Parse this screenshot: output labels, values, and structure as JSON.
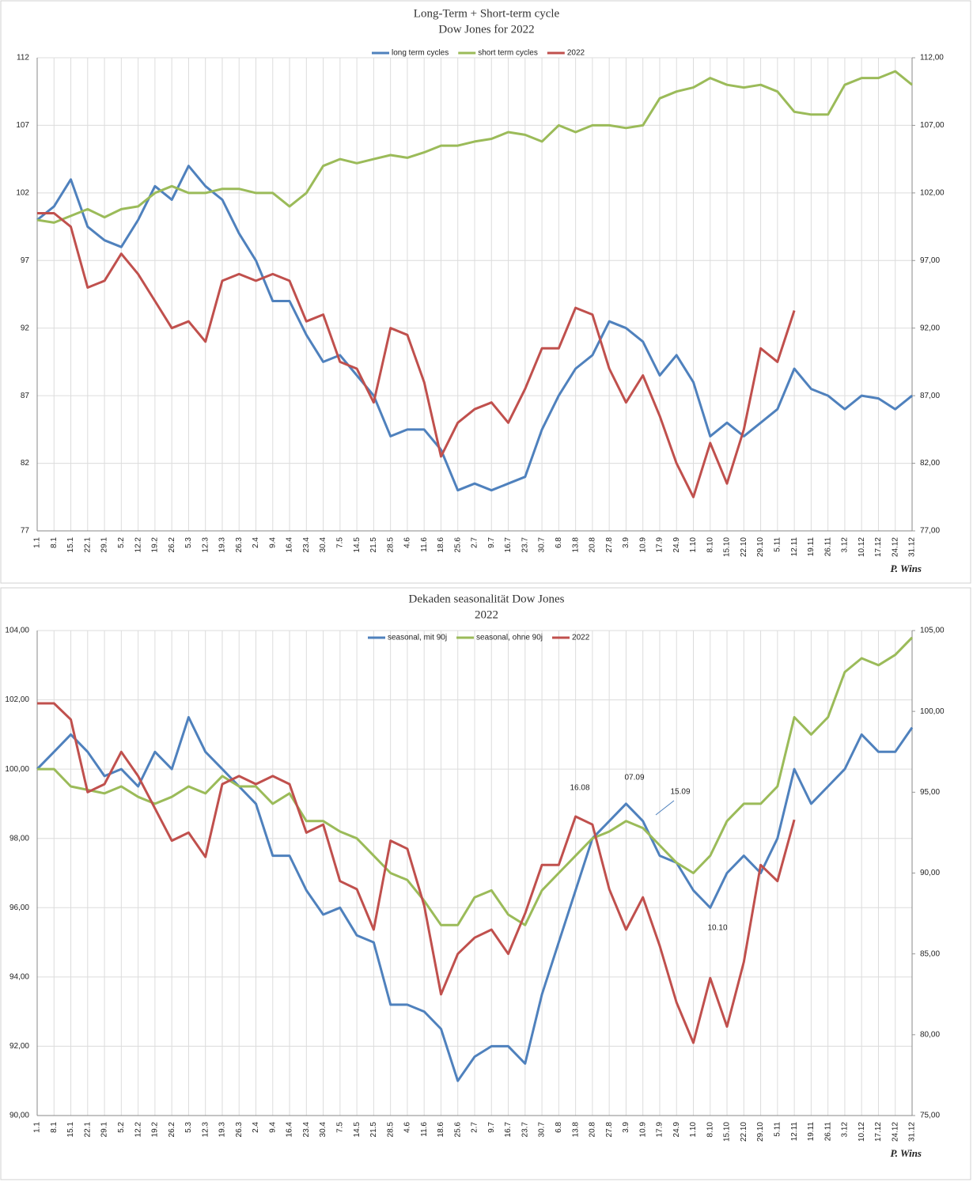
{
  "chart_data": [
    {
      "type": "line",
      "title": "Long-Term + Short-term cycle",
      "subtitle": "Dow Jones for 2022",
      "signature": "P. Wins",
      "categories": [
        "1.1",
        "8.1",
        "15.1",
        "22.1",
        "29.1",
        "5.2",
        "12.2",
        "19.2",
        "26.2",
        "5.3",
        "12.3",
        "19.3",
        "26.3",
        "2.4",
        "9.4",
        "16.4",
        "23.4",
        "30.4",
        "7.5",
        "14.5",
        "21.5",
        "28.5",
        "4.6",
        "11.6",
        "18.6",
        "25.6",
        "2.7",
        "9.7",
        "16.7",
        "23.7",
        "30.7",
        "6.8",
        "13.8",
        "20.8",
        "27.8",
        "3.9",
        "10.9",
        "17.9",
        "24.9",
        "1.10",
        "8.10",
        "15.10",
        "22.10",
        "29.10",
        "5.11",
        "12.11",
        "19.11",
        "26.11",
        "3.12",
        "10.12",
        "17.12",
        "24.12",
        "31.12"
      ],
      "series": [
        {
          "name": "long term cycles",
          "color": "#4f81bd",
          "values": [
            100,
            101,
            103,
            99.5,
            98.5,
            98,
            100,
            102.5,
            101.5,
            104,
            102.5,
            101.5,
            99,
            97,
            94,
            94,
            91.5,
            89.5,
            90,
            88.5,
            87,
            84,
            84.5,
            84.5,
            83,
            80,
            80.5,
            80,
            80.5,
            81,
            84.5,
            87,
            89,
            90,
            92.5,
            92,
            91,
            88.5,
            90,
            88,
            84,
            85,
            84,
            85,
            86,
            89,
            87.5,
            87,
            86,
            87,
            86.8,
            86,
            87
          ]
        },
        {
          "name": "short term cycles",
          "color": "#9bbb59",
          "values": [
            100,
            99.8,
            100.3,
            100.8,
            100.2,
            100.8,
            101,
            102,
            102.5,
            102,
            102,
            102.3,
            102.3,
            102,
            102,
            101,
            102,
            104,
            104.5,
            104.2,
            104.5,
            104.8,
            104.6,
            105,
            105.5,
            105.5,
            105.8,
            106,
            106.5,
            106.3,
            105.8,
            107,
            106.5,
            107,
            107,
            106.8,
            107,
            109,
            109.5,
            109.8,
            110.5,
            110,
            109.8,
            110,
            109.5,
            108,
            107.8,
            107.8,
            110,
            110.5,
            110.5,
            111,
            110
          ]
        },
        {
          "name": "2022",
          "color": "#c0504d",
          "axis": "y2",
          "values": [
            100.5,
            100.5,
            99.5,
            95,
            95.5,
            97.5,
            96,
            94,
            92,
            92.5,
            91,
            95.5,
            96,
            95.5,
            96,
            95.5,
            92.5,
            93,
            89.5,
            89,
            86.5,
            92,
            91.5,
            88,
            82.5,
            85,
            86,
            86.5,
            85,
            87.5,
            90.5,
            90.5,
            93.5,
            93,
            89,
            86.5,
            88.5,
            85.5,
            82,
            79.5,
            83.5,
            80.5,
            84.5,
            90.5,
            89.5,
            93.3,
            null,
            null,
            null,
            null,
            null,
            null,
            null
          ]
        }
      ],
      "ylim": [
        77,
        112
      ],
      "yticks": [
        77,
        82,
        87,
        92,
        97,
        102,
        107,
        112
      ],
      "y2lim": [
        77,
        112
      ],
      "y2ticks": [
        {
          "value": 77,
          "label": "77,00"
        },
        {
          "value": 82,
          "label": "82,00"
        },
        {
          "value": 87,
          "label": "87,00"
        },
        {
          "value": 92,
          "label": "92,00"
        },
        {
          "value": 97,
          "label": "97,00"
        },
        {
          "value": 102,
          "label": "102,00"
        },
        {
          "value": 107,
          "label": "107,00"
        },
        {
          "value": 112,
          "label": "112,00"
        }
      ],
      "grid": true,
      "legend": "top"
    },
    {
      "type": "line",
      "title": "Dekaden seasonalität Dow Jones",
      "subtitle": "2022",
      "signature": "P. Wins",
      "categories": [
        "1.1",
        "8.1",
        "15.1",
        "22.1",
        "29.1",
        "5.2",
        "12.2",
        "19.2",
        "26.2",
        "5.3",
        "12.3",
        "19.3",
        "26.3",
        "2.4",
        "9.4",
        "16.4",
        "23.4",
        "30.4",
        "7.5",
        "14.5",
        "21.5",
        "28.5",
        "4.6",
        "11.6",
        "18.6",
        "25.6",
        "2.7",
        "9.7",
        "16.7",
        "23.7",
        "30.7",
        "6.8",
        "13.8",
        "20.8",
        "27.8",
        "3.9",
        "10.9",
        "17.9",
        "24.9",
        "1.10",
        "8.10",
        "15.10",
        "22.10",
        "29.10",
        "5.11",
        "12.11",
        "19.11",
        "26.11",
        "3.12",
        "10.12",
        "17.12",
        "24.12",
        "31.12"
      ],
      "series": [
        {
          "name": "seasonal, mit 90j",
          "color": "#4f81bd",
          "values": [
            100,
            100.5,
            101,
            100.5,
            99.8,
            100,
            99.5,
            100.5,
            100,
            101.5,
            100.5,
            100,
            99.5,
            99,
            97.5,
            97.5,
            96.5,
            95.8,
            96,
            95.2,
            95,
            93.2,
            93.2,
            93,
            92.5,
            91,
            91.7,
            92,
            92,
            91.5,
            93.5,
            95,
            96.5,
            98,
            98.5,
            99,
            98.5,
            97.5,
            97.3,
            96.5,
            96,
            97,
            97.5,
            97,
            98,
            100,
            99,
            99.5,
            100,
            101,
            100.5,
            100.5,
            101.2
          ]
        },
        {
          "name": "seasonal, ohne 90j",
          "color": "#9bbb59",
          "values": [
            100,
            100,
            99.5,
            99.4,
            99.3,
            99.5,
            99.2,
            99,
            99.2,
            99.5,
            99.3,
            99.8,
            99.5,
            99.5,
            99,
            99.3,
            98.5,
            98.5,
            98.2,
            98,
            97.5,
            97,
            96.8,
            96.2,
            95.5,
            95.5,
            96.3,
            96.5,
            95.8,
            95.5,
            96.5,
            97,
            97.5,
            98,
            98.2,
            98.5,
            98.3,
            97.8,
            97.3,
            97,
            97.5,
            98.5,
            99,
            99,
            99.5,
            101.5,
            101,
            101.5,
            102.8,
            103.2,
            103,
            103.3,
            103.8
          ]
        },
        {
          "name": "2022",
          "color": "#c0504d",
          "axis": "y2",
          "values": [
            100.5,
            100.5,
            99.5,
            95,
            95.5,
            97.5,
            96,
            94,
            92,
            92.5,
            91,
            95.5,
            96,
            95.5,
            96,
            95.5,
            92.5,
            93,
            89.5,
            89,
            86.5,
            92,
            91.5,
            88,
            82.5,
            85,
            86,
            86.5,
            85,
            87.5,
            90.5,
            90.5,
            93.5,
            93,
            89,
            86.5,
            88.5,
            85.5,
            82,
            79.5,
            83.5,
            80.5,
            84.5,
            90.5,
            89.5,
            93.3,
            null,
            null,
            null,
            null,
            null,
            null,
            null
          ]
        }
      ],
      "ylim": [
        90,
        104
      ],
      "yticks": [
        {
          "value": 90,
          "label": "90,00"
        },
        {
          "value": 92,
          "label": "92,00"
        },
        {
          "value": 94,
          "label": "94,00"
        },
        {
          "value": 96,
          "label": "96,00"
        },
        {
          "value": 98,
          "label": "98,00"
        },
        {
          "value": 100,
          "label": "100,00"
        },
        {
          "value": 102,
          "label": "102,00"
        },
        {
          "value": 104,
          "label": "104,00"
        }
      ],
      "y2lim": [
        75,
        105
      ],
      "y2ticks": [
        {
          "value": 75,
          "label": "75,00"
        },
        {
          "value": 80,
          "label": "80,00"
        },
        {
          "value": 85,
          "label": "85,00"
        },
        {
          "value": 90,
          "label": "90,00"
        },
        {
          "value": 95,
          "label": "95,00"
        },
        {
          "value": 100,
          "label": "100,00"
        },
        {
          "value": 105,
          "label": "105,00"
        }
      ],
      "annotations": [
        "16.08",
        "07.09",
        "15.09",
        "10.10"
      ],
      "grid": true,
      "legend": "top"
    }
  ]
}
